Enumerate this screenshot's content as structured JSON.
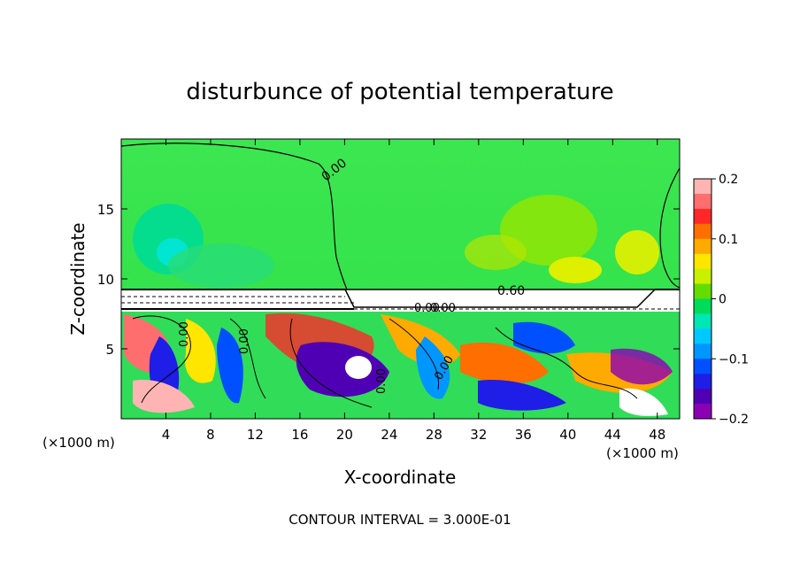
{
  "chart_data": {
    "type": "heatmap",
    "title": "disturbunce of potential temperature",
    "xlabel": "X-coordinate",
    "ylabel": "Z-coordinate",
    "x_unit_left": "(×1000 m)",
    "x_unit_right": "(×1000 m)",
    "xlim": [
      0,
      50
    ],
    "ylim": [
      0,
      20
    ],
    "x_ticks": [
      4,
      8,
      12,
      16,
      20,
      24,
      28,
      32,
      36,
      40,
      44,
      48
    ],
    "y_ticks": [
      5,
      10,
      15
    ],
    "colorbar": {
      "range": [
        -0.2,
        0.2
      ],
      "ticks": [
        "0.2",
        "0.1",
        "0",
        "−0.1",
        "−0.2"
      ],
      "tick_values": [
        0.2,
        0.1,
        0,
        -0.1,
        -0.2
      ],
      "colors": [
        "#ffb4b4",
        "#ff6e6e",
        "#ff2828",
        "#ff6e00",
        "#ffaa00",
        "#ffe600",
        "#c8f000",
        "#64dc00",
        "#00dc5a",
        "#00e6b4",
        "#00c8ff",
        "#0096ff",
        "#0050ff",
        "#1e1ee6",
        "#5000b4",
        "#8c00b4"
      ]
    },
    "contour_labels": [
      "0.00",
      "0.60",
      "0.00",
      "0.00",
      "0.00",
      "0.00",
      "0.00",
      "0.00"
    ],
    "contour_interval_text": "CONTOUR INTERVAL = 3.000E-01"
  }
}
